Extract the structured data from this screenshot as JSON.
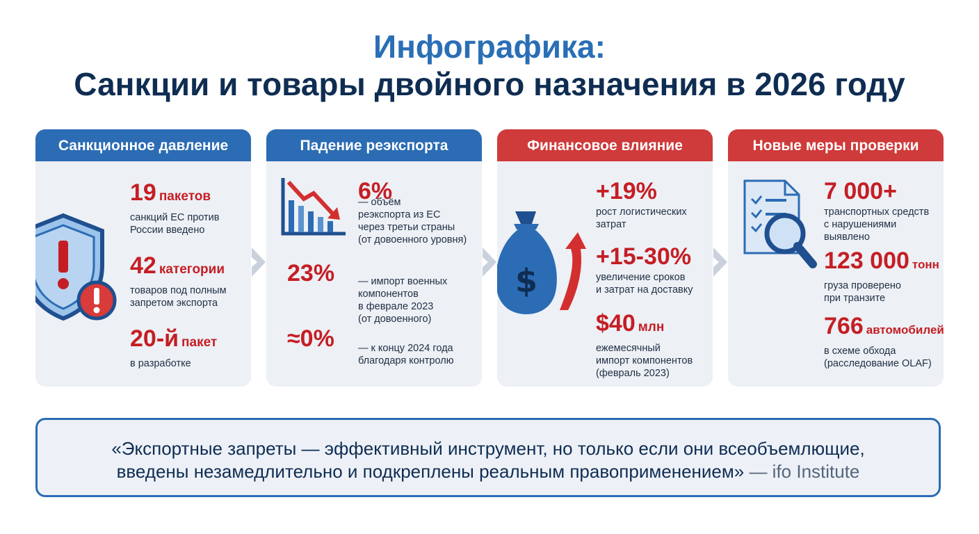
{
  "header": {
    "title_line1": "Инфографика:",
    "title_line2": "Санкции и товары двойного назначения в 2026 году"
  },
  "colors": {
    "blue": "#2b6cb4",
    "red": "#cf3a3a",
    "navy": "#0f2d52",
    "accent_red": "#c41e24"
  },
  "cards": [
    {
      "title": "Санкционное давление",
      "icon": "shield-warning-icon",
      "stats": [
        {
          "value": "19",
          "unit": "пакетов",
          "desc": "санкций ЕС против\nРоссии введено"
        },
        {
          "value": "42",
          "unit": "категории",
          "desc": "товаров под полным\nзапретом экспорта"
        },
        {
          "value": "20-й",
          "unit": "пакет",
          "desc": "в разработке"
        }
      ]
    },
    {
      "title": "Падение реэкспорта",
      "icon": "declining-chart-icon",
      "stats": [
        {
          "value": "6%",
          "desc": "— объём\nреэкспорта из ЕС\nчерез третьи страны\n(от довоенного уровня)"
        },
        {
          "value": "23%",
          "desc": "— импорт военных\nкомпонентов\nв феврале 2023\n(от довоенного)"
        },
        {
          "value": "≈0%",
          "desc": "— к концу 2024 года\nблагодаря контролю"
        }
      ]
    },
    {
      "title": "Финансовое влияние",
      "icon": "money-bag-arrow-icon",
      "stats": [
        {
          "value": "+19%",
          "desc": "рост логистических\nзатрат"
        },
        {
          "value": "+15-30%",
          "desc": "увеличение сроков\nи затрат на доставку"
        },
        {
          "value": "$40",
          "unit": "млн",
          "desc": "ежемесячный\nимпорт компонентов\n(февраль 2023)"
        }
      ]
    },
    {
      "title": "Новые меры проверки",
      "icon": "document-magnifier-icon",
      "stats": [
        {
          "value": "7 000+",
          "desc": "транспортных средств\nс нарушениями\nвыявлено"
        },
        {
          "value": "123 000",
          "unit": "тонн",
          "desc": "груза проверено\nпри транзите"
        },
        {
          "value": "766",
          "unit": "автомобилей",
          "desc": "в схеме обхода\n(расследование OLAF)"
        }
      ]
    }
  ],
  "quote": {
    "line1": "«Экспортные запреты — эффективный инструмент, но только если они всеобъемлющие,",
    "line2": "введены незамедлительно и подкреплены реальным правоприменением»",
    "source": "— ifo Institute"
  }
}
